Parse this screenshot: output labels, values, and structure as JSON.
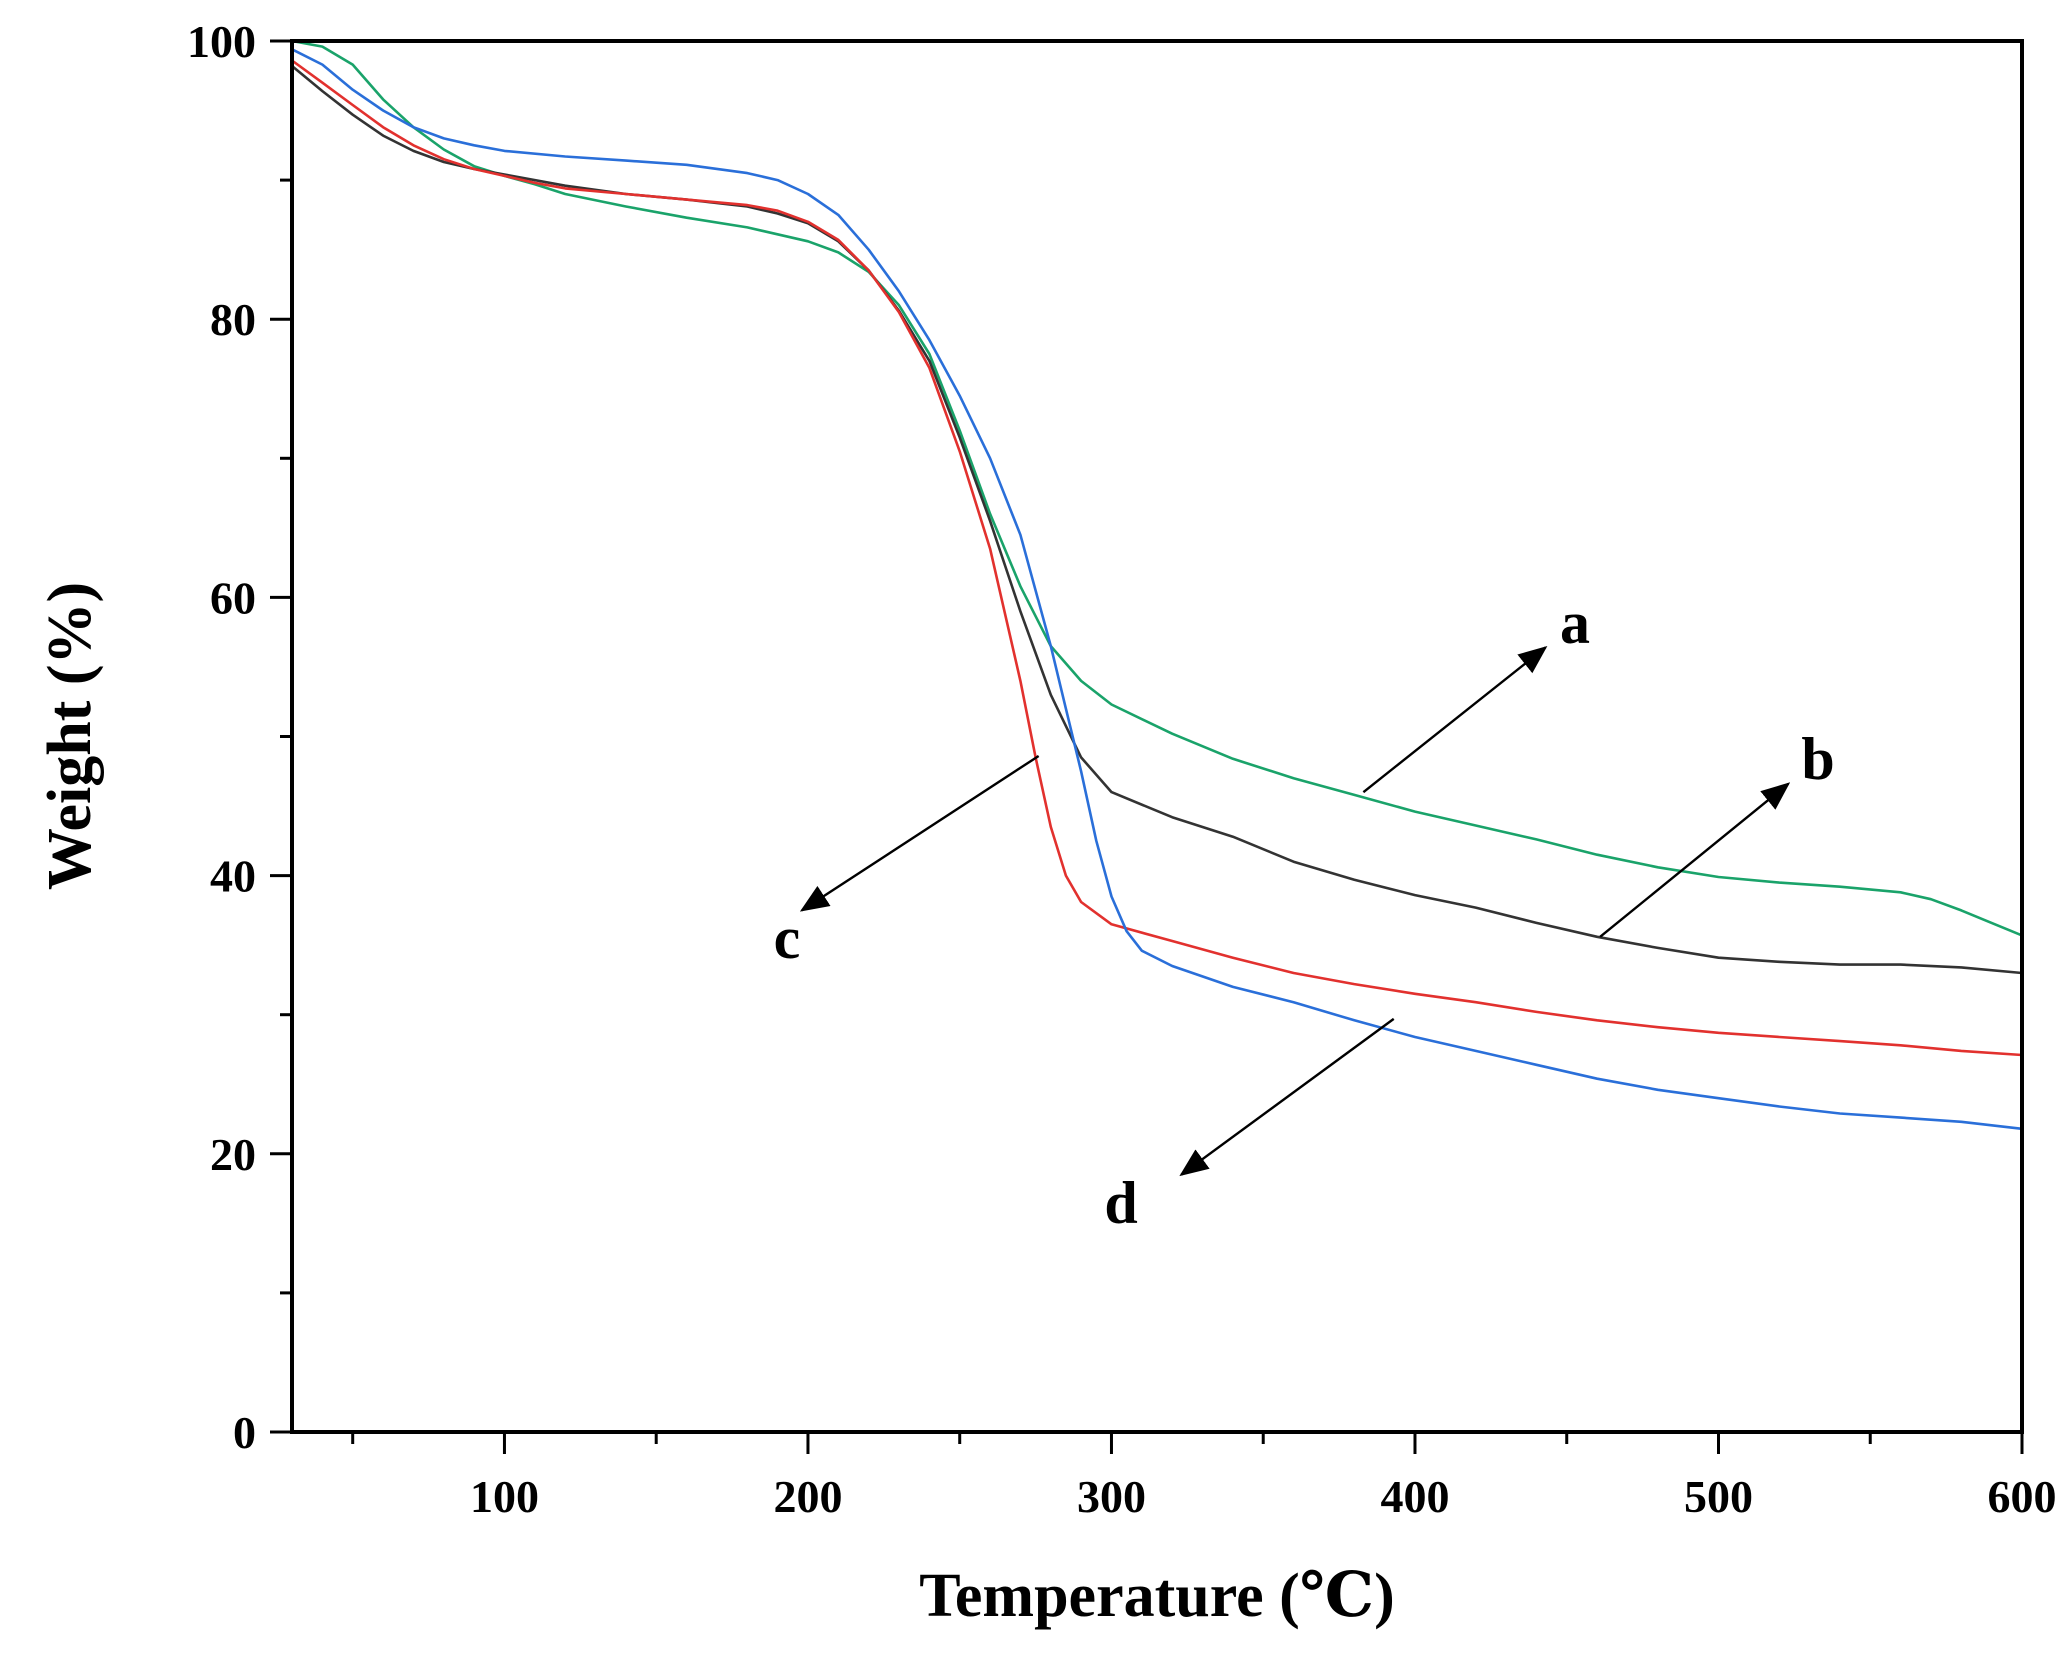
{
  "chart_data": {
    "type": "line",
    "title": "",
    "xlabel": "Temperature (℃)",
    "ylabel": "Weight (%)",
    "xlim": [
      30,
      600
    ],
    "ylim": [
      0,
      100
    ],
    "x_ticks": [
      100,
      200,
      300,
      400,
      500,
      600
    ],
    "x_minor_ticks": [
      50,
      150,
      250,
      350,
      450,
      550
    ],
    "y_ticks": [
      0,
      20,
      40,
      60,
      80,
      100
    ],
    "y_minor_ticks": [
      10,
      30,
      50,
      70,
      90
    ],
    "grid": false,
    "legend": "none",
    "series": [
      {
        "color": "#1aa36a",
        "points": [
          [
            30,
            100
          ],
          [
            40,
            99.6
          ],
          [
            50,
            98.3
          ],
          [
            60,
            95.8
          ],
          [
            70,
            93.8
          ],
          [
            80,
            92.2
          ],
          [
            90,
            91.0
          ],
          [
            100,
            90.3
          ],
          [
            110,
            89.7
          ],
          [
            120,
            89.0
          ],
          [
            140,
            88.1
          ],
          [
            160,
            87.3
          ],
          [
            180,
            86.6
          ],
          [
            200,
            85.6
          ],
          [
            210,
            84.8
          ],
          [
            220,
            83.4
          ],
          [
            230,
            81.0
          ],
          [
            240,
            77.5
          ],
          [
            250,
            72.0
          ],
          [
            260,
            66.0
          ],
          [
            270,
            60.8
          ],
          [
            280,
            56.5
          ],
          [
            290,
            54.0
          ],
          [
            300,
            52.3
          ],
          [
            320,
            50.2
          ],
          [
            340,
            48.4
          ],
          [
            360,
            47.0
          ],
          [
            380,
            45.8
          ],
          [
            400,
            44.6
          ],
          [
            420,
            43.6
          ],
          [
            440,
            42.6
          ],
          [
            460,
            41.5
          ],
          [
            480,
            40.6
          ],
          [
            500,
            39.9
          ],
          [
            520,
            39.5
          ],
          [
            540,
            39.2
          ],
          [
            560,
            38.8
          ],
          [
            570,
            38.3
          ],
          [
            580,
            37.5
          ],
          [
            590,
            36.6
          ],
          [
            600,
            35.7
          ]
        ]
      },
      {
        "color": "#333333",
        "points": [
          [
            30,
            98.2
          ],
          [
            40,
            96.4
          ],
          [
            50,
            94.7
          ],
          [
            60,
            93.2
          ],
          [
            70,
            92.1
          ],
          [
            80,
            91.3
          ],
          [
            90,
            90.8
          ],
          [
            100,
            90.4
          ],
          [
            120,
            89.6
          ],
          [
            140,
            89.0
          ],
          [
            160,
            88.6
          ],
          [
            180,
            88.1
          ],
          [
            190,
            87.6
          ],
          [
            200,
            86.9
          ],
          [
            210,
            85.6
          ],
          [
            220,
            83.5
          ],
          [
            230,
            80.6
          ],
          [
            240,
            77.0
          ],
          [
            250,
            71.5
          ],
          [
            260,
            65.5
          ],
          [
            270,
            59.0
          ],
          [
            280,
            53.0
          ],
          [
            290,
            48.5
          ],
          [
            300,
            46.0
          ],
          [
            320,
            44.2
          ],
          [
            340,
            42.8
          ],
          [
            360,
            41.0
          ],
          [
            380,
            39.7
          ],
          [
            400,
            38.6
          ],
          [
            420,
            37.7
          ],
          [
            440,
            36.6
          ],
          [
            460,
            35.6
          ],
          [
            480,
            34.8
          ],
          [
            500,
            34.1
          ],
          [
            520,
            33.8
          ],
          [
            540,
            33.6
          ],
          [
            560,
            33.6
          ],
          [
            580,
            33.4
          ],
          [
            600,
            33.0
          ]
        ]
      },
      {
        "color": "#e2312e",
        "points": [
          [
            30,
            98.6
          ],
          [
            40,
            97.0
          ],
          [
            50,
            95.4
          ],
          [
            60,
            93.8
          ],
          [
            70,
            92.5
          ],
          [
            80,
            91.5
          ],
          [
            90,
            90.8
          ],
          [
            100,
            90.3
          ],
          [
            110,
            89.8
          ],
          [
            120,
            89.4
          ],
          [
            140,
            89.0
          ],
          [
            160,
            88.6
          ],
          [
            180,
            88.2
          ],
          [
            190,
            87.8
          ],
          [
            200,
            87.0
          ],
          [
            210,
            85.7
          ],
          [
            220,
            83.5
          ],
          [
            230,
            80.5
          ],
          [
            240,
            76.5
          ],
          [
            250,
            70.5
          ],
          [
            260,
            63.5
          ],
          [
            270,
            54.0
          ],
          [
            275,
            48.5
          ],
          [
            280,
            43.5
          ],
          [
            285,
            40.0
          ],
          [
            290,
            38.1
          ],
          [
            300,
            36.5
          ],
          [
            320,
            35.3
          ],
          [
            340,
            34.1
          ],
          [
            360,
            33.0
          ],
          [
            380,
            32.2
          ],
          [
            400,
            31.5
          ],
          [
            420,
            30.9
          ],
          [
            440,
            30.2
          ],
          [
            460,
            29.6
          ],
          [
            480,
            29.1
          ],
          [
            500,
            28.7
          ],
          [
            520,
            28.4
          ],
          [
            540,
            28.1
          ],
          [
            560,
            27.8
          ],
          [
            580,
            27.4
          ],
          [
            600,
            27.1
          ]
        ]
      },
      {
        "color": "#2a6fd9",
        "points": [
          [
            30,
            99.4
          ],
          [
            40,
            98.3
          ],
          [
            50,
            96.5
          ],
          [
            60,
            95.0
          ],
          [
            70,
            93.8
          ],
          [
            80,
            93.0
          ],
          [
            90,
            92.5
          ],
          [
            100,
            92.1
          ],
          [
            120,
            91.7
          ],
          [
            140,
            91.4
          ],
          [
            160,
            91.1
          ],
          [
            180,
            90.5
          ],
          [
            190,
            90.0
          ],
          [
            200,
            89.0
          ],
          [
            210,
            87.5
          ],
          [
            220,
            85.0
          ],
          [
            230,
            82.0
          ],
          [
            240,
            78.5
          ],
          [
            250,
            74.5
          ],
          [
            260,
            70.0
          ],
          [
            270,
            64.5
          ],
          [
            280,
            56.5
          ],
          [
            285,
            52.0
          ],
          [
            290,
            47.5
          ],
          [
            295,
            42.5
          ],
          [
            300,
            38.5
          ],
          [
            305,
            36.0
          ],
          [
            310,
            34.6
          ],
          [
            320,
            33.5
          ],
          [
            340,
            32.0
          ],
          [
            360,
            30.9
          ],
          [
            380,
            29.6
          ],
          [
            400,
            28.4
          ],
          [
            420,
            27.4
          ],
          [
            440,
            26.4
          ],
          [
            460,
            25.4
          ],
          [
            480,
            24.6
          ],
          [
            500,
            24.0
          ],
          [
            520,
            23.4
          ],
          [
            540,
            22.9
          ],
          [
            560,
            22.6
          ],
          [
            580,
            22.3
          ],
          [
            600,
            21.8
          ]
        ]
      }
    ],
    "annotations": [
      {
        "label": "a",
        "from": [
          383,
          46
        ],
        "to": [
          443,
          56.4
        ]
      },
      {
        "label": "b",
        "from": [
          461,
          35.6
        ],
        "to": [
          523,
          46.6
        ]
      },
      {
        "label": "c",
        "from": [
          276,
          48.6
        ],
        "to": [
          198,
          37.5
        ]
      },
      {
        "label": "d",
        "from": [
          393,
          29.7
        ],
        "to": [
          323,
          18.5
        ]
      }
    ]
  }
}
